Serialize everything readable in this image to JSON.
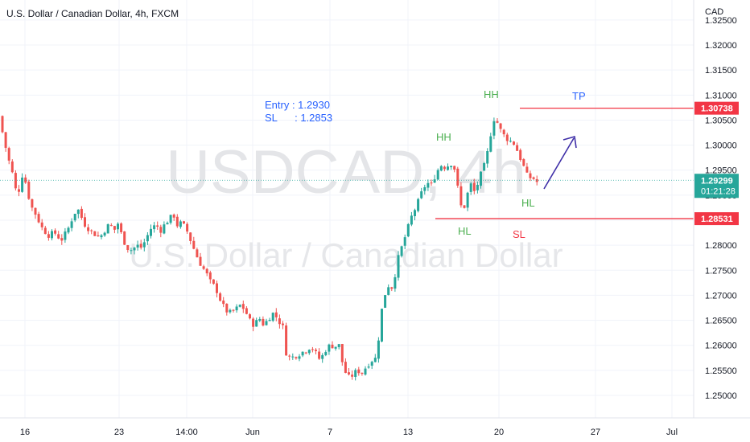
{
  "header": {
    "symbol_title": "U.S. Dollar / Canadian Dollar, 4h, FXCM"
  },
  "watermark": {
    "ticker": "USDCAD, 4h",
    "name": "U.S. Dollar / Canadian Dollar"
  },
  "axis": {
    "currency": "CAD",
    "y_ticks": [
      "1.32500",
      "1.32000",
      "1.31500",
      "1.31000",
      "1.30500",
      "1.30000",
      "1.29500",
      "1.29000",
      "1.28500",
      "1.28000",
      "1.27500",
      "1.27000",
      "1.26500",
      "1.26000",
      "1.25500",
      "1.25000"
    ],
    "x_ticks": [
      "16",
      "23",
      "14:00",
      "Jun",
      "7",
      "13",
      "20",
      "27",
      "Jul"
    ]
  },
  "price_labels": {
    "tp_price": "1.30738",
    "sl_price": "1.28531",
    "last_price": "1.29299",
    "countdown": "01:21:28"
  },
  "annotations": {
    "entry": "Entry : 1.2930",
    "sl_note": "SL      : 1.2853",
    "hh_left": "HH",
    "hh_right": "HH",
    "hl_left": "HL",
    "hl_right": "HL",
    "tp": "TP",
    "sl": "SL"
  },
  "colors": {
    "up": "#26a69a",
    "down": "#ef5350",
    "level_line": "#f23645",
    "arrow": "#3f2fa8",
    "annotation_blue": "#2962ff",
    "annotation_green": "#4caf50",
    "last_price_bg": "#26a69a",
    "grid": "#f0f3fa"
  },
  "chart_data": {
    "type": "candlestick",
    "title": "U.S. Dollar / Canadian Dollar, 4h, FXCM",
    "ylabel": "CAD",
    "ylim": [
      1.2455,
      1.329
    ],
    "grid": true,
    "levels": {
      "tp": 1.30738,
      "sl": 1.28531,
      "last": 1.29299,
      "entry": 1.293
    },
    "close_path": [
      [
        0,
        1.305
      ],
      [
        5,
        1.301
      ],
      [
        10,
        1.2975
      ],
      [
        16,
        1.294
      ],
      [
        22,
        1.289
      ],
      [
        26,
        1.2945
      ],
      [
        32,
        1.2925
      ],
      [
        38,
        1.288
      ],
      [
        45,
        1.286
      ],
      [
        52,
        1.2835
      ],
      [
        60,
        1.282
      ],
      [
        68,
        1.2825
      ],
      [
        76,
        1.281
      ],
      [
        84,
        1.283
      ],
      [
        90,
        1.2855
      ],
      [
        96,
        1.2875
      ],
      [
        100,
        1.286
      ],
      [
        106,
        1.284
      ],
      [
        112,
        1.283
      ],
      [
        118,
        1.2822
      ],
      [
        124,
        1.2815
      ],
      [
        130,
        1.283
      ],
      [
        136,
        1.2842
      ],
      [
        142,
        1.283
      ],
      [
        147,
        1.2845
      ],
      [
        152,
        1.2815
      ],
      [
        158,
        1.2795
      ],
      [
        164,
        1.279
      ],
      [
        170,
        1.28
      ],
      [
        176,
        1.2795
      ],
      [
        182,
        1.2815
      ],
      [
        188,
        1.2835
      ],
      [
        194,
        1.284
      ],
      [
        200,
        1.283
      ],
      [
        206,
        1.2845
      ],
      [
        212,
        1.2855
      ],
      [
        216,
        1.286
      ],
      [
        220,
        1.284
      ],
      [
        226,
        1.2845
      ],
      [
        232,
        1.283
      ],
      [
        238,
        1.2805
      ],
      [
        244,
        1.278
      ],
      [
        250,
        1.276
      ],
      [
        256,
        1.2745
      ],
      [
        262,
        1.2725
      ],
      [
        268,
        1.2715
      ],
      [
        274,
        1.269
      ],
      [
        280,
        1.267
      ],
      [
        286,
        1.2665
      ],
      [
        292,
        1.267
      ],
      [
        298,
        1.268
      ],
      [
        304,
        1.2672
      ],
      [
        310,
        1.265
      ],
      [
        316,
        1.264
      ],
      [
        322,
        1.2655
      ],
      [
        328,
        1.264
      ],
      [
        334,
        1.2655
      ],
      [
        340,
        1.2665
      ],
      [
        346,
        1.265
      ],
      [
        352,
        1.2635
      ],
      [
        356,
        1.258
      ],
      [
        362,
        1.2575
      ],
      [
        368,
        1.258
      ],
      [
        374,
        1.2585
      ],
      [
        380,
        1.259
      ],
      [
        386,
        1.2598
      ],
      [
        392,
        1.2585
      ],
      [
        398,
        1.257
      ],
      [
        404,
        1.259
      ],
      [
        410,
        1.26
      ],
      [
        416,
        1.2598
      ],
      [
        422,
        1.26
      ],
      [
        426,
        1.256
      ],
      [
        432,
        1.2535
      ],
      [
        438,
        1.254
      ],
      [
        444,
        1.255
      ],
      [
        450,
        1.2545
      ],
      [
        456,
        1.256
      ],
      [
        462,
        1.257
      ],
      [
        468,
        1.2575
      ],
      [
        472,
        1.264
      ],
      [
        476,
        1.269
      ],
      [
        482,
        1.272
      ],
      [
        488,
        1.2715
      ],
      [
        494,
        1.277
      ],
      [
        500,
        1.28
      ],
      [
        506,
        1.283
      ],
      [
        512,
        1.286
      ],
      [
        518,
        1.288
      ],
      [
        524,
        1.2905
      ],
      [
        530,
        1.2925
      ],
      [
        536,
        1.292
      ],
      [
        542,
        1.2945
      ],
      [
        548,
        1.296
      ],
      [
        554,
        1.2955
      ],
      [
        560,
        1.2965
      ],
      [
        566,
        1.295
      ],
      [
        570,
        1.29
      ],
      [
        574,
        1.287
      ],
      [
        578,
        1.288
      ],
      [
        584,
        1.2925
      ],
      [
        590,
        1.2905
      ],
      [
        596,
        1.2935
      ],
      [
        602,
        1.296
      ],
      [
        608,
        1.3
      ],
      [
        612,
        1.305
      ],
      [
        616,
        1.3055
      ],
      [
        620,
        1.3035
      ],
      [
        626,
        1.302
      ],
      [
        632,
        1.301
      ],
      [
        638,
        1.3005
      ],
      [
        644,
        1.2985
      ],
      [
        650,
        1.296
      ],
      [
        656,
        1.2935
      ],
      [
        662,
        1.2935
      ],
      [
        668,
        1.2925
      ],
      [
        673,
        1.293
      ]
    ]
  }
}
